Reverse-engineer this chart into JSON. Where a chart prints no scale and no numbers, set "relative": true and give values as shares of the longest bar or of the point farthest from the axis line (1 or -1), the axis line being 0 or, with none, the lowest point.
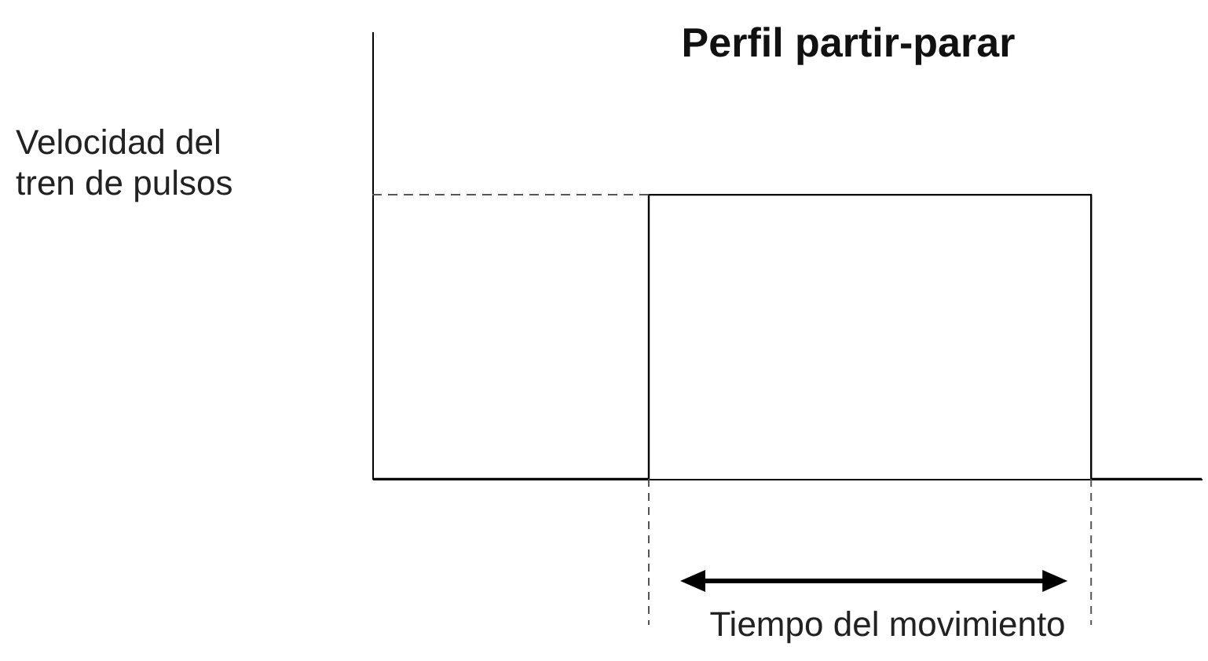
{
  "chart_data": {
    "type": "step",
    "title": "Perfil partir-parar",
    "ylabel": "Velocidad del\ntren de pulsos",
    "annotations": [
      "Tiempo del movimiento"
    ],
    "relative": true,
    "color": "#000000",
    "grid": false,
    "categories": [
      null,
      null,
      null,
      null,
      null,
      null,
      null,
      null,
      null,
      null,
      null,
      null,
      null,
      null,
      null,
      null
    ],
    "values": [
      0,
      0,
      0,
      0,
      0,
      1,
      1,
      1,
      1,
      1,
      1,
      1,
      1,
      0,
      0,
      0
    ],
    "ref_lines": [
      {
        "axis": "y",
        "value": 1,
        "line_style": "dashed"
      }
    ]
  }
}
